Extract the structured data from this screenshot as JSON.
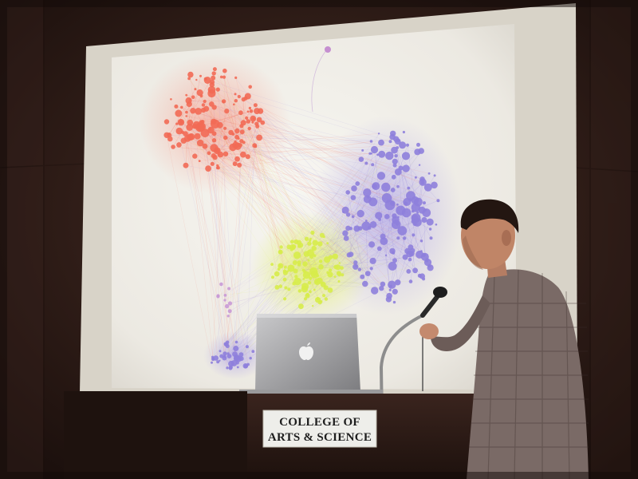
{
  "podium_sign": {
    "line1": "COLLEGE OF",
    "line2": "ARTS & SCIENCE"
  },
  "colors": {
    "cluster_red": "#f26a55",
    "cluster_purple": "#8e7fdc",
    "cluster_yellow": "#d7ec4a",
    "screen": "#f2f0ea",
    "room": "#2a1a16"
  },
  "icons": {
    "laptop_logo": "apple-logo-icon"
  }
}
